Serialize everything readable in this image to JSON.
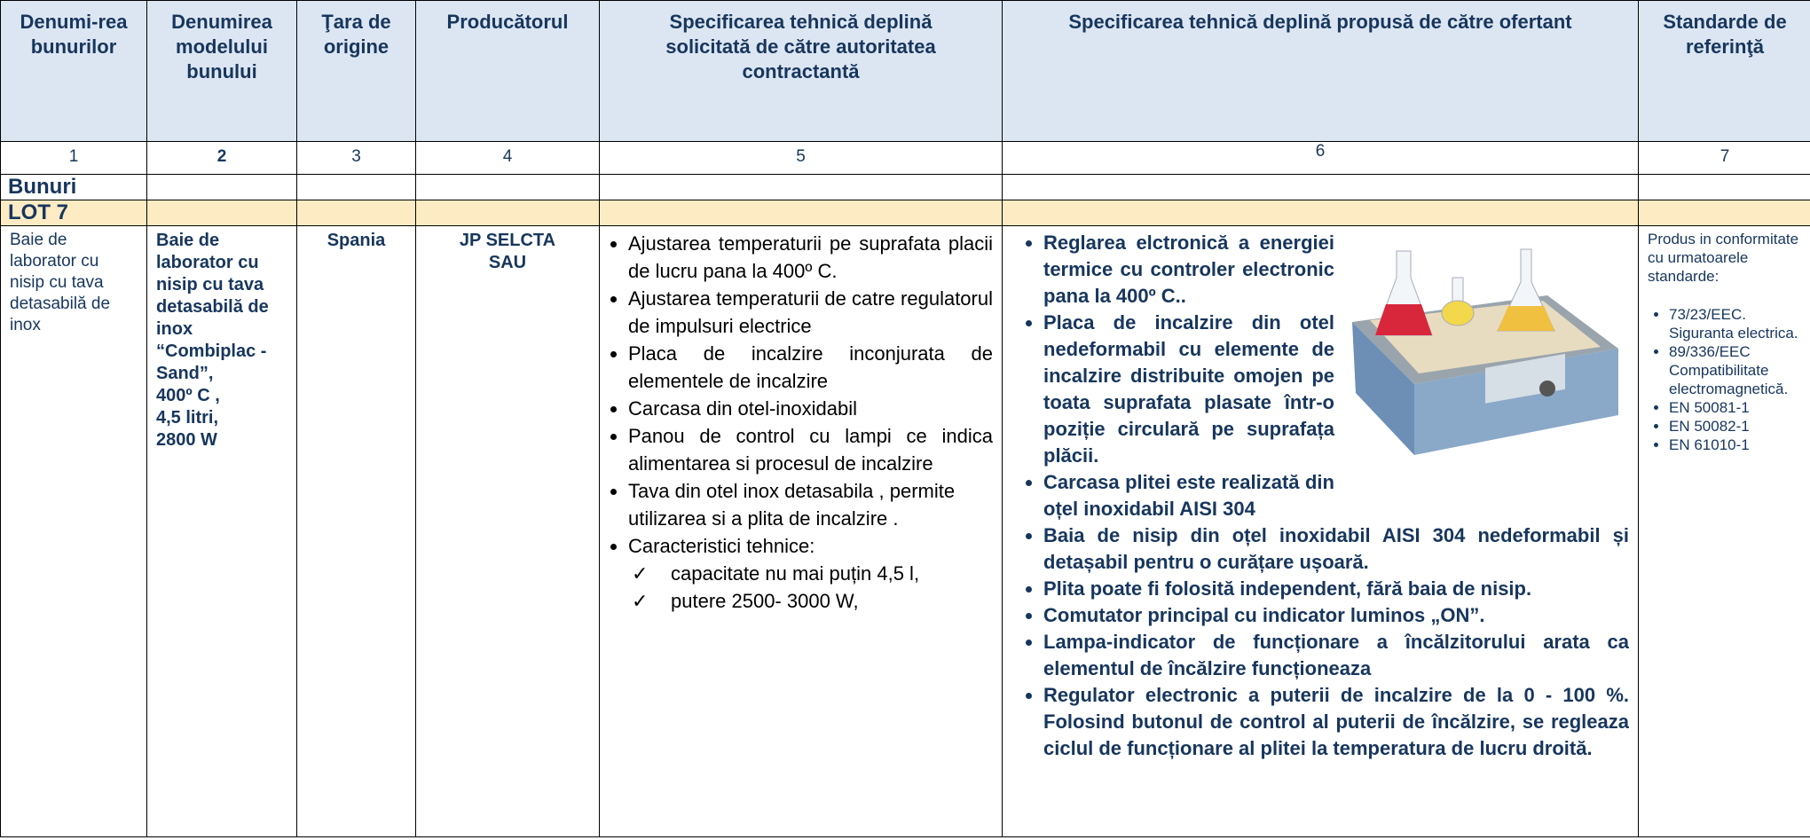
{
  "table": {
    "header": [
      "Denumi-rea bunurilor",
      "Denumirea modelului bunului",
      "Ţara de origine",
      "Producătorul",
      "Specificarea tehnică deplină solicitată de către autoritatea contractantă",
      "Specificarea tehnică deplină propusă de către ofertant",
      "Standarde de referinţă"
    ],
    "numbers": [
      "1",
      "2",
      "3",
      "4",
      "5",
      "6",
      "7"
    ],
    "section": "Bunuri",
    "lot": "LOT 7",
    "row": {
      "name": "Baie de laborator cu nisip cu tava detasabilă de inox",
      "model": [
        "Baie de laborator cu nisip cu tava detasabilă de inox",
        "“Combiplac -Sand”,",
        "400º C ,",
        "4,5 litri,",
        "2800 W"
      ],
      "country": "Spania",
      "producer": "JP SELCTA SAU",
      "requested": {
        "items": [
          "Ajustarea temperaturii pe suprafata placii de lucru pana la 400º C.",
          "Ajustarea temperaturii de catre regulatorul de impulsuri electrice",
          "Placa de incalzire inconjurata de elementele de incalzire",
          "Carcasa din otel-inoxidabil",
          "Panou de control cu lampi ce indica alimentarea si procesul de incalzire",
          "Tava din otel inox detasabila , permite utilizarea si a plita de incalzire .",
          "Caracteristici tehnice:"
        ],
        "subitems": [
          "capacitate nu mai puțin 4,5 l,",
          "putere 2500- 3000 W,"
        ]
      },
      "proposed": [
        "Reglarea elctronică a energiei termice cu controler electronic pana la 400º C..",
        "Placa de incalzire din otel nedeformabil cu elemente de incalzire distribuite omojen pe toata suprafata plasate într-o poziție circulară pe suprafața plăcii.",
        "Carcasa plitei este realizată din oțel inoxidabil AISI 304",
        "Baia de nisip din oțel inoxidabil AISI 304 nedeformabil și detașabil pentru o curățare ușoară.",
        "Plita poate fi folosită independent, fără baia de nisip.",
        "Comutator principal cu indicator luminos „ON”.",
        "Lampa-indicator de funcționare a încălzitorului arata ca elementul de încălzire funcționeaza",
        "Regulator electronic a puterii de incalzire de la 0 - 100 %. Folosind butonul de control al puterii de încălzire, se regleaza ciclul de funcționare al plitei la temperatura de lucru droită."
      ],
      "standards": {
        "intro": "Produs in conformitate cu urmatoarele standarde:",
        "items": [
          "73/23/EEC. Siguranta electrica.",
          "89/336/EEC Compatibilitate electromagnetică.",
          "EN 50081-1",
          "EN 50082-1",
          "EN 61010-1"
        ]
      }
    }
  }
}
